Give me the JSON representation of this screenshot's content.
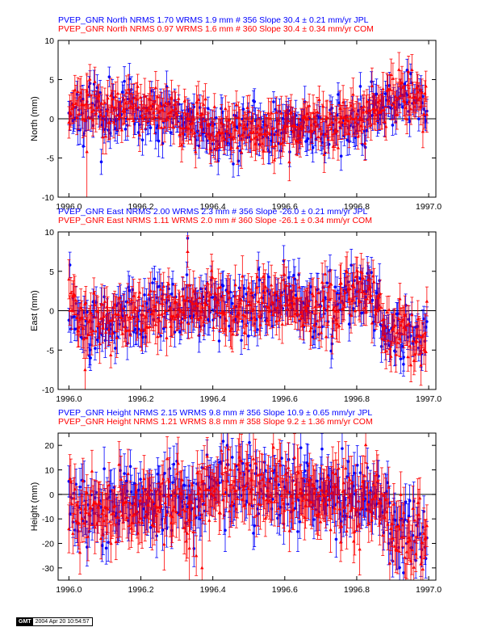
{
  "chart_data": [
    {
      "type": "scatter",
      "title_lines": [
        {
          "text": "PVEP_GNR North NRMS 1.70 WRMS  1.9 mm # 356 Slope   30.4 ±  0.21 mm/yr JPL",
          "color": "#0000ff"
        },
        {
          "text": "PVEP_GNR North NRMS 0.97 WRMS  1.6 mm # 360 Slope   30.4 ±  0.34 mm/yr COM",
          "color": "#ff0000"
        }
      ],
      "xlabel": "",
      "ylabel": "North (mm)",
      "xlim": [
        1995.97,
        1997.02
      ],
      "ylim": [
        -10,
        10
      ],
      "xticks": [
        1996.0,
        1996.2,
        1996.4,
        1996.6,
        1996.8,
        1997.0
      ],
      "xtick_labels": [
        "1996.0",
        "1996.2",
        "1996.4",
        "1996.6",
        "1996.8",
        "1997.0"
      ],
      "yticks": [
        -10,
        -5,
        0,
        5,
        10
      ],
      "ytick_labels": [
        "-10",
        "-5",
        "0",
        "5",
        "10"
      ],
      "series": [
        {
          "name": "JPL",
          "marker": "circle",
          "color": "#0000ff",
          "n": 356,
          "seed": 11,
          "x_start": 1996.0,
          "x_end": 1996.995,
          "noise": 1.7,
          "err": [
            1.2,
            2.0
          ],
          "trend": [
            [
              1996.0,
              1.2
            ],
            [
              1996.1,
              1.5
            ],
            [
              1996.2,
              0.8
            ],
            [
              1996.3,
              0.8
            ],
            [
              1996.4,
              -1.6
            ],
            [
              1996.6,
              -1.2
            ],
            [
              1996.8,
              -0.4
            ],
            [
              1996.92,
              3.0
            ],
            [
              1997.0,
              2.0
            ]
          ],
          "extras": [
            {
              "x": 1996.04,
              "y": -3.5,
              "e": 1.4
            },
            {
              "x": 1996.09,
              "y": -5.5,
              "e": 1.6
            },
            {
              "x": 1996.94,
              "y": 6.2,
              "e": 1.4
            }
          ]
        },
        {
          "name": "COM",
          "marker": "triangle",
          "color": "#ff0000",
          "n": 360,
          "seed": 23,
          "x_start": 1996.0,
          "x_end": 1996.995,
          "noise": 1.5,
          "err": [
            1.5,
            2.4
          ],
          "trend": [
            [
              1996.0,
              1.2
            ],
            [
              1996.1,
              1.5
            ],
            [
              1996.2,
              0.8
            ],
            [
              1996.3,
              0.8
            ],
            [
              1996.4,
              -1.6
            ],
            [
              1996.6,
              -1.2
            ],
            [
              1996.8,
              -0.4
            ],
            [
              1996.92,
              3.0
            ],
            [
              1997.0,
              2.0
            ]
          ],
          "extras": [
            {
              "x": 1996.05,
              "y": -4.2,
              "e": 10.0
            },
            {
              "x": 1996.944,
              "y": 6.0,
              "e": 2.0
            }
          ]
        }
      ]
    },
    {
      "type": "scatter",
      "title_lines": [
        {
          "text": "PVEP_GNR East NRMS 2.00 WRMS  2.3 mm # 356 Slope  -26.0 ±  0.21 mm/yr JPL",
          "color": "#0000ff"
        },
        {
          "text": "PVEP_GNR East NRMS 1.11 WRMS  2.0 mm # 360 Slope  -26.1 ±  0.34 mm/yr COM",
          "color": "#ff0000"
        }
      ],
      "xlabel": "",
      "ylabel": "East (mm)",
      "xlim": [
        1995.97,
        1997.02
      ],
      "ylim": [
        -10,
        10
      ],
      "xticks": [
        1996.0,
        1996.2,
        1996.4,
        1996.6,
        1996.8,
        1997.0
      ],
      "xtick_labels": [
        "1996.0",
        "1996.2",
        "1996.4",
        "1996.6",
        "1996.8",
        "1997.0"
      ],
      "yticks": [
        -10,
        -5,
        0,
        5,
        10
      ],
      "ytick_labels": [
        "-10",
        "-5",
        "0",
        "5",
        "10"
      ],
      "series": [
        {
          "name": "JPL",
          "marker": "circle",
          "color": "#0000ff",
          "n": 356,
          "seed": 37,
          "x_start": 1996.0,
          "x_end": 1996.995,
          "noise": 2.0,
          "err": [
            1.4,
            2.2
          ],
          "trend": [
            [
              1996.0,
              1.0
            ],
            [
              1996.05,
              -1.5
            ],
            [
              1996.15,
              -0.8
            ],
            [
              1996.3,
              0.5
            ],
            [
              1996.5,
              0.2
            ],
            [
              1996.6,
              1.2
            ],
            [
              1996.7,
              0.6
            ],
            [
              1996.83,
              2.8
            ],
            [
              1996.88,
              -2.5
            ],
            [
              1997.0,
              -3.5
            ]
          ],
          "extras": [
            {
              "x": 1996.33,
              "y": 9.2,
              "e": 1.8
            },
            {
              "x": 1996.06,
              "y": -6.0,
              "e": 1.6
            },
            {
              "x": 1996.93,
              "y": -6.8,
              "e": 1.5
            }
          ]
        },
        {
          "name": "COM",
          "marker": "triangle",
          "color": "#ff0000",
          "n": 360,
          "seed": 41,
          "x_start": 1996.0,
          "x_end": 1996.995,
          "noise": 1.8,
          "err": [
            1.6,
            2.6
          ],
          "trend": [
            [
              1996.0,
              1.0
            ],
            [
              1996.05,
              -1.5
            ],
            [
              1996.15,
              -0.8
            ],
            [
              1996.3,
              0.5
            ],
            [
              1996.5,
              0.2
            ],
            [
              1996.6,
              1.2
            ],
            [
              1996.7,
              0.6
            ],
            [
              1996.83,
              2.8
            ],
            [
              1996.88,
              -2.5
            ],
            [
              1997.0,
              -3.5
            ]
          ],
          "extras": [
            {
              "x": 1996.045,
              "y": -7.5,
              "e": 5.5
            },
            {
              "x": 1996.33,
              "y": 7.5,
              "e": 2.0
            },
            {
              "x": 1996.92,
              "y": 1.5,
              "e": 2.0
            }
          ]
        }
      ]
    },
    {
      "type": "scatter",
      "title_lines": [
        {
          "text": "PVEP_GNR Height NRMS 2.15 WRMS  9.8 mm # 356 Slope   10.9 ±  0.65 mm/yr JPL",
          "color": "#0000ff"
        },
        {
          "text": "PVEP_GNR Height NRMS 1.21 WRMS  8.8 mm # 358 Slope    9.2 ±  1.36 mm/yr COM",
          "color": "#ff0000"
        }
      ],
      "xlabel": "",
      "ylabel": "Height (mm)",
      "xlim": [
        1995.97,
        1997.02
      ],
      "ylim": [
        -35,
        25
      ],
      "xticks": [
        1996.0,
        1996.2,
        1996.4,
        1996.6,
        1996.8,
        1997.0
      ],
      "xtick_labels": [
        "1996.0",
        "1996.2",
        "1996.4",
        "1996.6",
        "1996.8",
        "1997.0"
      ],
      "yticks": [
        -30,
        -20,
        -10,
        0,
        10,
        20
      ],
      "ytick_labels": [
        "-30",
        "-20",
        "-10",
        "0",
        "10",
        "20"
      ],
      "series": [
        {
          "name": "JPL",
          "marker": "circle",
          "color": "#0000ff",
          "n": 356,
          "seed": 53,
          "x_start": 1996.0,
          "x_end": 1996.995,
          "noise": 8.0,
          "err": [
            6.0,
            9.0
          ],
          "trend": [
            [
              1996.0,
              -6.0
            ],
            [
              1996.2,
              -4.0
            ],
            [
              1996.35,
              -2.0
            ],
            [
              1996.42,
              6.0
            ],
            [
              1996.55,
              3.0
            ],
            [
              1996.7,
              0.0
            ],
            [
              1996.85,
              -2.0
            ],
            [
              1996.9,
              -14.0
            ],
            [
              1997.0,
              -16.0
            ]
          ],
          "extras": [
            {
              "x": 1996.44,
              "y": 20.0,
              "e": 6.0
            },
            {
              "x": 1996.93,
              "y": -32.0,
              "e": 6.0
            }
          ]
        },
        {
          "name": "COM",
          "marker": "triangle",
          "color": "#ff0000",
          "n": 358,
          "seed": 67,
          "x_start": 1996.0,
          "x_end": 1996.995,
          "noise": 7.0,
          "err": [
            7.0,
            11.0
          ],
          "trend": [
            [
              1996.0,
              -7.0
            ],
            [
              1996.2,
              -5.0
            ],
            [
              1996.35,
              -3.0
            ],
            [
              1996.42,
              3.0
            ],
            [
              1996.55,
              0.0
            ],
            [
              1996.7,
              -2.0
            ],
            [
              1996.85,
              -4.0
            ],
            [
              1996.9,
              -16.0
            ],
            [
              1997.0,
              -18.0
            ]
          ],
          "extras": [
            {
              "x": 1996.335,
              "y": -22.0,
              "e": 22.0
            },
            {
              "x": 1996.37,
              "y": -30.0,
              "e": 22.0
            }
          ]
        }
      ]
    }
  ],
  "footer": {
    "logo": "GMT",
    "timestamp": "2004 Apr 20 10:54:57"
  }
}
